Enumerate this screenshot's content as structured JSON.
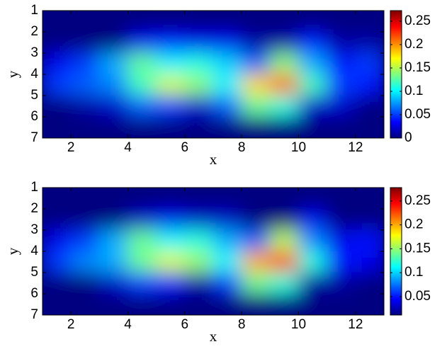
{
  "chart_data": [
    {
      "type": "heatmap",
      "xlabel": "x",
      "ylabel": "y",
      "colormap": "jet",
      "xlim": [
        1,
        13
      ],
      "xticks": [
        2,
        4,
        6,
        8,
        10,
        12
      ],
      "ylim": [
        7,
        1
      ],
      "yticks": [
        1,
        2,
        3,
        4,
        5,
        6,
        7
      ],
      "clim": [
        0,
        0.2727
      ],
      "cticks": [
        0,
        0.05,
        0.1,
        0.15,
        0.2,
        0.25
      ],
      "z": [
        [
          0,
          0,
          0,
          0,
          0,
          0,
          0,
          0,
          0,
          0,
          0,
          0
        ],
        [
          0,
          0,
          0,
          0.03,
          0.04,
          0.03,
          0.03,
          0.01,
          0.01,
          0.04,
          0.01,
          0.01
        ],
        [
          0.03,
          0.05,
          0.08,
          0.13,
          0.1,
          0.11,
          0.09,
          0.06,
          0.14,
          0.08,
          0.04,
          0.05
        ],
        [
          0.05,
          0.06,
          0.07,
          0.12,
          0.16,
          0.14,
          0.1,
          0.18,
          0.21,
          0.12,
          0.05,
          0.04
        ],
        [
          0,
          0.01,
          0.02,
          0.06,
          0.05,
          0.02,
          0.06,
          0.13,
          0.11,
          0.02,
          0.02,
          0
        ],
        [
          0,
          0,
          0,
          0,
          0,
          0,
          0,
          0,
          0,
          0,
          0,
          0
        ]
      ]
    },
    {
      "type": "heatmap",
      "xlabel": "x",
      "ylabel": "y",
      "colormap": "jet",
      "xlim": [
        1,
        13
      ],
      "xticks": [
        2,
        4,
        6,
        8,
        10,
        12
      ],
      "ylim": [
        7,
        1
      ],
      "yticks": [
        1,
        2,
        3,
        4,
        5,
        6,
        7
      ],
      "clim": [
        0.0115,
        0.278
      ],
      "cticks": [
        0.05,
        0.1,
        0.15,
        0.2,
        0.25
      ],
      "z": [
        [
          0,
          0,
          0,
          0,
          0,
          0,
          0,
          0,
          0,
          0,
          0,
          0
        ],
        [
          0,
          0,
          0,
          0.03,
          0.04,
          0.03,
          0.03,
          0.01,
          0.01,
          0.04,
          0.01,
          0.01
        ],
        [
          0.04,
          0.06,
          0.09,
          0.14,
          0.11,
          0.12,
          0.09,
          0.07,
          0.16,
          0.08,
          0.04,
          0.05
        ],
        [
          0.06,
          0.08,
          0.09,
          0.14,
          0.17,
          0.15,
          0.11,
          0.2,
          0.23,
          0.12,
          0.05,
          0.04
        ],
        [
          0,
          0.01,
          0.03,
          0.06,
          0.05,
          0.02,
          0.06,
          0.14,
          0.12,
          0.02,
          0.02,
          0
        ],
        [
          0,
          0,
          0,
          0,
          0,
          0,
          0,
          0,
          0,
          0,
          0,
          0
        ]
      ]
    }
  ]
}
